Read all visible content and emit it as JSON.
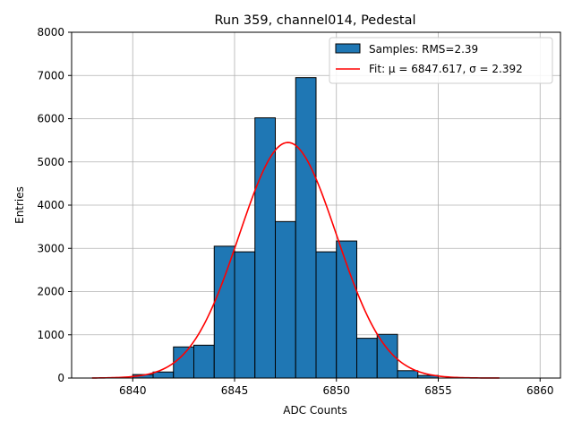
{
  "chart_data": {
    "type": "bar",
    "title": "Run 359, channel014, Pedestal",
    "xlabel": "ADC Counts",
    "ylabel": "Entries",
    "xlim": [
      6837,
      6861
    ],
    "ylim": [
      0,
      8000
    ],
    "xticks": [
      6840,
      6845,
      6850,
      6855,
      6860
    ],
    "yticks": [
      0,
      1000,
      2000,
      3000,
      4000,
      5000,
      6000,
      7000,
      8000
    ],
    "grid": true,
    "legend_position": "top-right",
    "histogram": {
      "name": "Samples: RMS=2.39",
      "color": "#1f77b4",
      "bin_width": 1,
      "bins": [
        {
          "x0": 6840,
          "count": 80
        },
        {
          "x0": 6841,
          "count": 140
        },
        {
          "x0": 6842,
          "count": 720
        },
        {
          "x0": 6843,
          "count": 760
        },
        {
          "x0": 6844,
          "count": 3050
        },
        {
          "x0": 6845,
          "count": 2920
        },
        {
          "x0": 6846,
          "count": 6020
        },
        {
          "x0": 6847,
          "count": 3620
        },
        {
          "x0": 6848,
          "count": 6950
        },
        {
          "x0": 6849,
          "count": 2920
        },
        {
          "x0": 6850,
          "count": 3170
        },
        {
          "x0": 6851,
          "count": 920
        },
        {
          "x0": 6852,
          "count": 1010
        },
        {
          "x0": 6853,
          "count": 170
        },
        {
          "x0": 6854,
          "count": 60
        }
      ]
    },
    "fit": {
      "label": "Fit: μ = 6847.617, σ = 2.392",
      "color": "#ff0000",
      "mu": 6847.617,
      "sigma": 2.392,
      "amplitude": 5450,
      "x_range": [
        6838,
        6858
      ]
    }
  }
}
